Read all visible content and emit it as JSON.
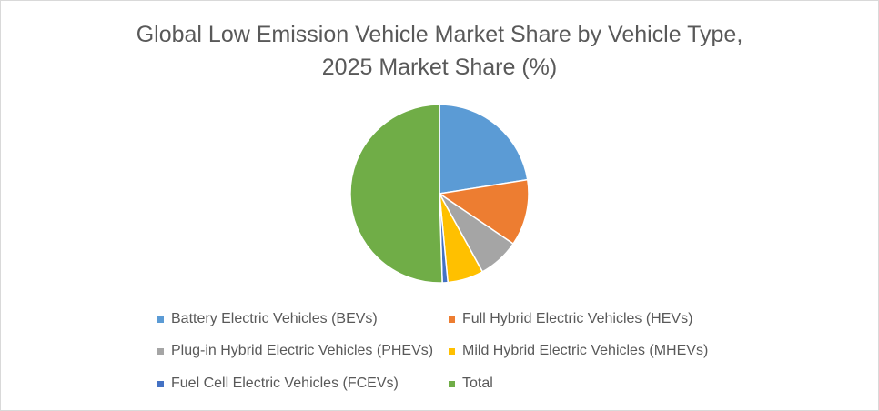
{
  "chart_data": {
    "type": "pie",
    "title": "Global Low Emission Vehicle Market Share by Vehicle Type,",
    "subtitle": "2025 Market Share (%)",
    "legend_position": "bottom",
    "categories": [
      "Battery Electric Vehicles (BEVs)",
      "Full Hybrid Electric Vehicles (HEVs)",
      "Plug-in Hybrid Electric Vehicles (PHEVs)",
      "Mild Hybrid Electric Vehicles (MHEVs)",
      "Fuel Cell Electric Vehicles (FCEVs)",
      "Total"
    ],
    "values": [
      22.5,
      12.0,
      7.5,
      6.5,
      1.0,
      50.5
    ],
    "colors": [
      "#5b9bd5",
      "#ed7d31",
      "#a5a5a5",
      "#ffc000",
      "#4472c4",
      "#70ad47"
    ]
  }
}
